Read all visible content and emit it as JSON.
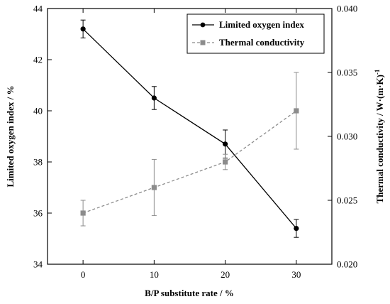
{
  "chart_data": {
    "type": "line",
    "xlabel": "B/P substitute rate / %",
    "ylabel_left": "Limited oxygen index / %",
    "ylabel_right": "Thermal conductivity / W·(m·K)",
    "ylabel_right_sup": "-1",
    "x": [
      0,
      10,
      20,
      30
    ],
    "xticks": [
      "0",
      "10",
      "20",
      "30"
    ],
    "xlim": [
      -5,
      35
    ],
    "ylim_left": [
      34,
      44
    ],
    "yticks_left": [
      "34",
      "36",
      "38",
      "40",
      "42",
      "44"
    ],
    "ylim_right": [
      0.02,
      0.04
    ],
    "yticks_right": [
      "0.020",
      "0.025",
      "0.030",
      "0.035",
      "0.040"
    ],
    "legend_position": "top-right",
    "series": [
      {
        "name": "Limited oxygen index",
        "axis": "left",
        "values": [
          43.2,
          40.5,
          38.7,
          35.4
        ],
        "errors": [
          0.35,
          0.45,
          0.55,
          0.35
        ],
        "color": "#000000",
        "line_style": "solid",
        "marker": "circle"
      },
      {
        "name": "Thermal conductivity",
        "axis": "right",
        "values": [
          0.024,
          0.026,
          0.028,
          0.032
        ],
        "errors": [
          0.001,
          0.0022,
          0.0006,
          0.003
        ],
        "color": "#8c8c8c",
        "line_style": "dashed",
        "marker": "square"
      }
    ]
  }
}
